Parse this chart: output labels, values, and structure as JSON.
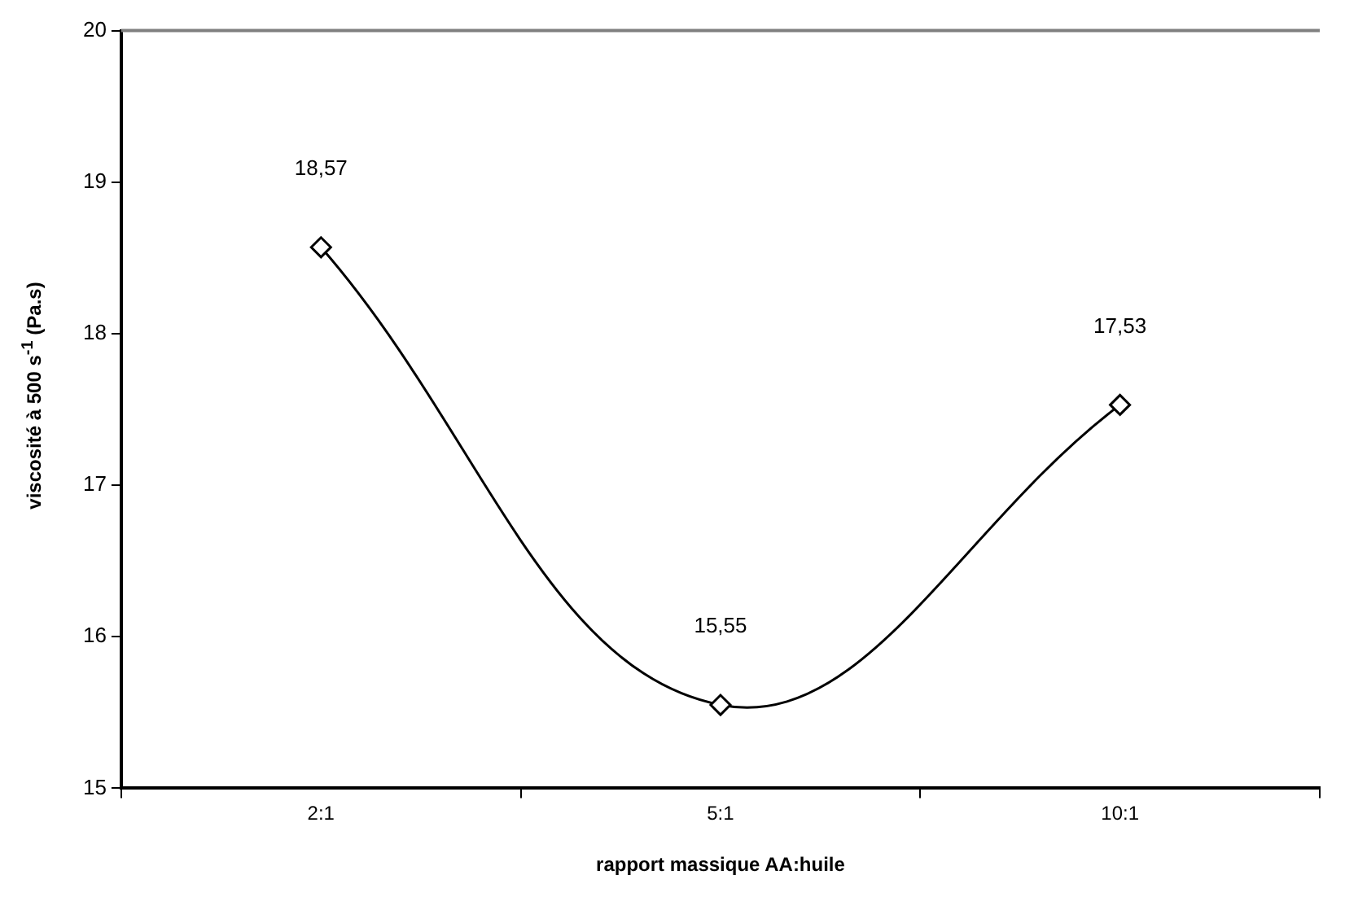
{
  "chart_data": {
    "type": "line",
    "xlabel": "rapport massique AA:huile",
    "ylabel": "viscosité à 500 s$^{-1}$ (Pa.s)",
    "categories": [
      "2:1",
      "5:1",
      "10:1"
    ],
    "series": [
      {
        "color": "#000000",
        "values": [
          18.57,
          15.55,
          17.53
        ],
        "value_labels": [
          "18,57",
          "15,55",
          "17,53"
        ]
      }
    ],
    "ylim": [
      15,
      20
    ],
    "yticks": [
      15,
      16,
      17,
      18,
      19,
      20
    ],
    "marker": "diamond",
    "line_style": "solid",
    "legend": false
  }
}
